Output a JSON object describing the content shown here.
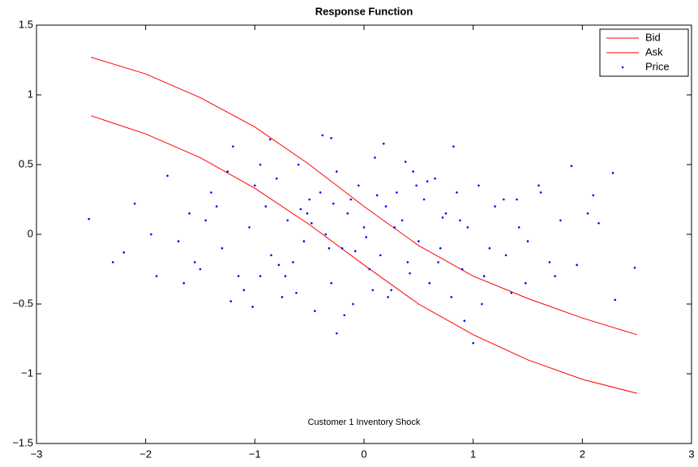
{
  "chart_data": {
    "type": "line-scatter",
    "title": "Response Function",
    "annotation": "Customer 1 Inventory Shock",
    "xlim": [
      -3,
      3
    ],
    "ylim": [
      -1.5,
      1.5
    ],
    "xticks": [
      {
        "value": -3,
        "label": "−3"
      },
      {
        "value": -2,
        "label": "−2"
      },
      {
        "value": -1,
        "label": "−1"
      },
      0,
      1,
      2,
      3
    ],
    "yticks": [
      {
        "value": -1.5,
        "label": "−1.5"
      },
      {
        "value": -1,
        "label": "−1"
      },
      {
        "value": -0.5,
        "label": "−0.5"
      },
      0,
      0.5,
      1,
      1.5
    ],
    "legend": "upper right",
    "series": [
      {
        "name": "Bid",
        "color": "#ff0000",
        "kind": "line",
        "x": [
          -2.5,
          -2,
          -1.5,
          -1,
          -0.5,
          0,
          0.5,
          1,
          1.5,
          2,
          2.5
        ],
        "values": [
          1.27,
          1.15,
          0.98,
          0.77,
          0.5,
          0.2,
          -0.08,
          -0.3,
          -0.46,
          -0.6,
          -0.72
        ]
      },
      {
        "name": "Ask",
        "color": "#ff0000",
        "kind": "line",
        "x": [
          -2.5,
          -2,
          -1.5,
          -1,
          -0.5,
          0,
          0.5,
          1,
          1.5,
          2,
          2.5
        ],
        "values": [
          0.85,
          0.72,
          0.55,
          0.33,
          0.07,
          -0.22,
          -0.5,
          -0.72,
          -0.9,
          -1.04,
          -1.14
        ]
      },
      {
        "name": "Price",
        "color": "#0000ff",
        "kind": "scatter",
        "x": [
          -2.52,
          2.48,
          2.28,
          1.9,
          1.0,
          -0.25,
          -0.38,
          -0.3,
          0.18,
          0.82,
          -1.2,
          -0.86,
          2.3,
          -2.2,
          -2.1,
          -1.9,
          -1.8,
          2.1,
          1.95,
          2.15,
          -1.6,
          -1.5,
          -1.4,
          -1.3,
          -1.25,
          -1.1,
          -1.05,
          -1.0,
          -0.95,
          -0.9,
          -0.85,
          -0.8,
          -0.75,
          -0.7,
          -0.65,
          -0.6,
          -0.55,
          -0.5,
          -0.45,
          -0.4,
          -0.35,
          -0.3,
          -0.25,
          -0.2,
          -0.15,
          -0.1,
          -0.05,
          0.0,
          0.05,
          0.1,
          0.15,
          0.2,
          0.25,
          0.3,
          0.35,
          0.4,
          0.45,
          0.5,
          0.55,
          0.6,
          0.65,
          0.7,
          0.75,
          0.8,
          0.85,
          0.9,
          0.95,
          1.05,
          1.1,
          1.2,
          1.3,
          1.4,
          1.5,
          1.6,
          1.7,
          1.8,
          -1.55,
          -1.35,
          -1.15,
          -0.95,
          -0.72,
          -0.52,
          -0.32,
          -0.12,
          0.08,
          0.28,
          0.48,
          0.68,
          0.88,
          1.08,
          1.28,
          1.48,
          -1.7,
          -1.45,
          -0.62,
          -0.18,
          0.38,
          0.92,
          1.35,
          1.62,
          -2.3,
          -1.95,
          -1.65,
          1.75,
          2.05,
          0.12,
          -0.08,
          0.42,
          -0.48,
          0.72,
          -1.02,
          -0.78,
          -0.28,
          0.22,
          0.58,
          1.15,
          1.42,
          -1.22,
          0.02,
          -0.58
        ],
        "values": [
          0.11,
          -0.24,
          0.44,
          0.49,
          -0.78,
          -0.71,
          0.71,
          0.69,
          0.65,
          0.63,
          0.63,
          0.68,
          -0.47,
          -0.13,
          0.22,
          -0.3,
          0.42,
          0.28,
          -0.22,
          0.08,
          0.15,
          -0.25,
          0.3,
          -0.1,
          0.45,
          -0.4,
          0.05,
          0.35,
          -0.3,
          0.2,
          -0.15,
          0.4,
          -0.45,
          0.1,
          -0.2,
          0.5,
          -0.05,
          0.25,
          -0.55,
          0.3,
          0.0,
          -0.35,
          0.45,
          -0.1,
          0.15,
          -0.5,
          0.35,
          0.05,
          -0.25,
          0.55,
          -0.15,
          0.2,
          -0.4,
          0.3,
          0.1,
          -0.2,
          0.45,
          -0.05,
          0.25,
          -0.35,
          0.4,
          -0.1,
          0.15,
          -0.45,
          0.3,
          -0.25,
          0.05,
          0.35,
          -0.3,
          0.2,
          -0.15,
          0.25,
          -0.05,
          0.35,
          -0.2,
          0.1,
          -0.2,
          0.2,
          -0.3,
          0.5,
          -0.3,
          0.15,
          -0.1,
          0.25,
          -0.4,
          0.05,
          0.35,
          -0.2,
          0.1,
          -0.5,
          0.25,
          -0.35,
          -0.05,
          0.1,
          -0.42,
          -0.58,
          0.52,
          -0.62,
          -0.42,
          0.3,
          -0.2,
          0.0,
          -0.35,
          -0.3,
          0.15,
          0.28,
          -0.12,
          -0.28,
          0.08,
          0.12,
          -0.52,
          -0.22,
          0.22,
          -0.45,
          0.38,
          -0.1,
          0.05,
          -0.48,
          -0.02,
          0.18
        ]
      }
    ]
  }
}
